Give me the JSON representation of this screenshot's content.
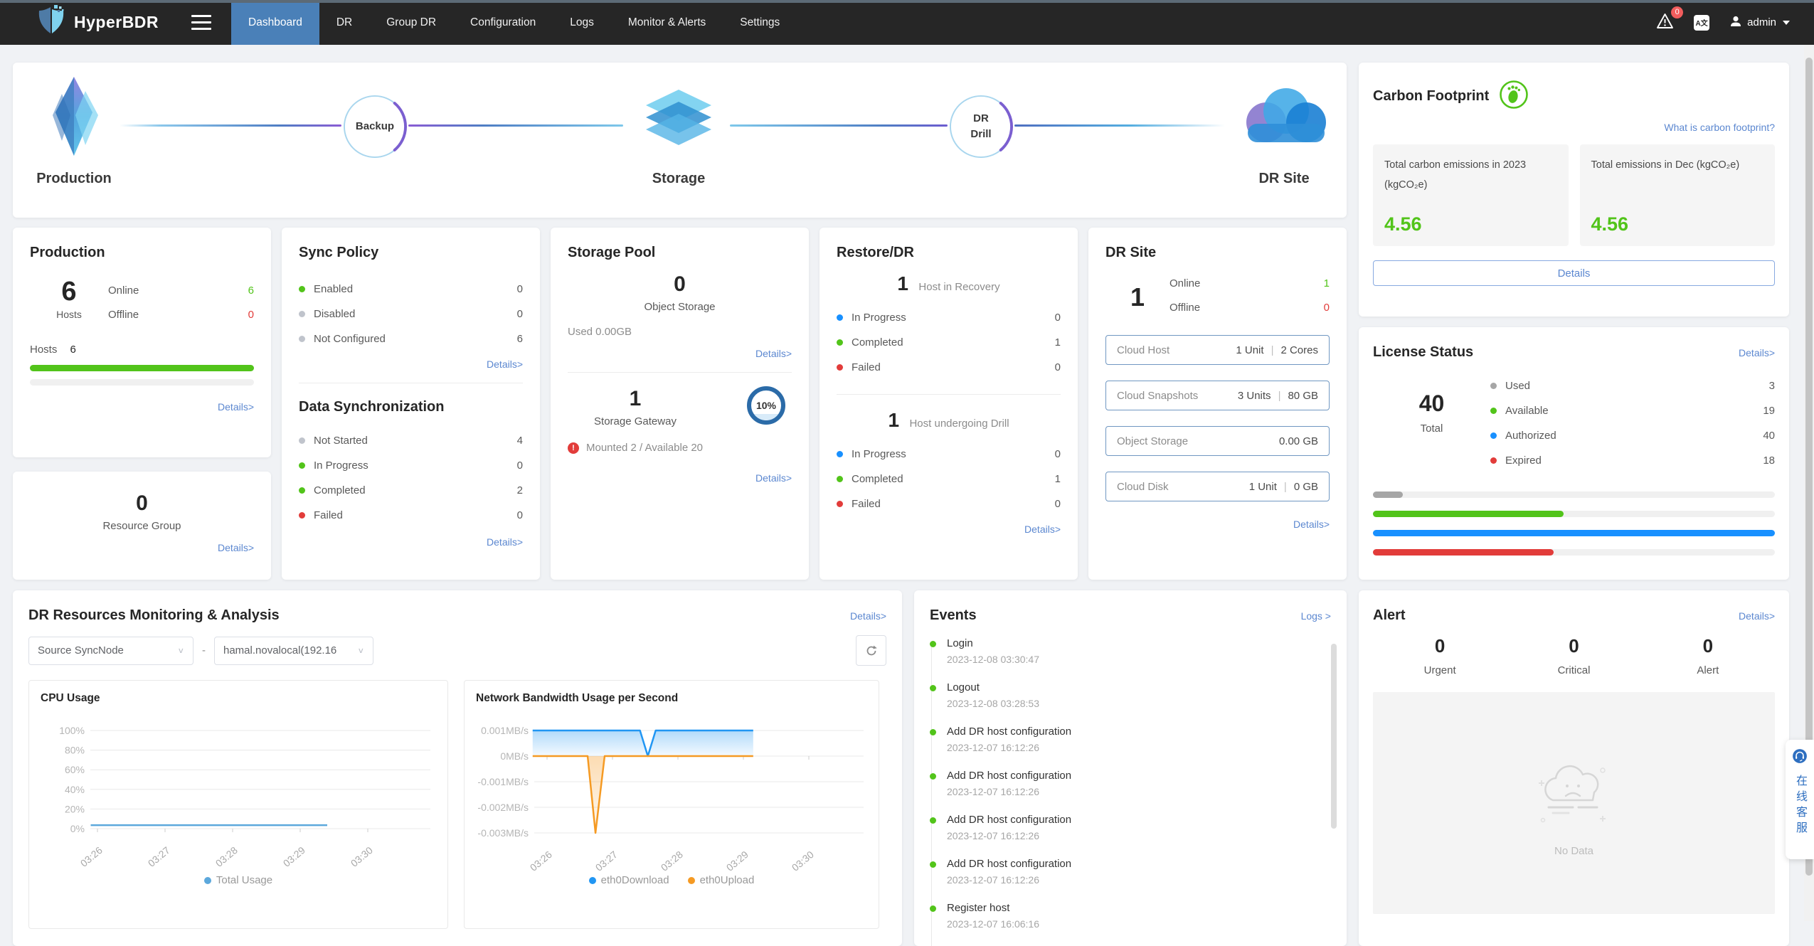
{
  "navbar": {
    "brand": "HyperBDR",
    "menu": [
      {
        "label": "Dashboard"
      },
      {
        "label": "DR"
      },
      {
        "label": "Group DR"
      },
      {
        "label": "Configuration"
      },
      {
        "label": "Logs"
      },
      {
        "label": "Monitor & Alerts"
      },
      {
        "label": "Settings"
      }
    ],
    "alarm_badge": "0",
    "lang_label": "A文",
    "user": "admin"
  },
  "flow": {
    "production_label": "Production",
    "storage_label": "Storage",
    "drsite_label": "DR Site",
    "backup_label": "Backup",
    "drill_line1": "DR",
    "drill_line2": "Drill"
  },
  "carbon": {
    "title": "Carbon Footprint",
    "link": "What is carbon footprint?",
    "cards": [
      {
        "label": "Total carbon emissions in 2023 (kgCO₂e)",
        "value": "4.56"
      },
      {
        "label": "Total emissions in Dec (kgCO₂e)",
        "value": "4.56"
      }
    ],
    "details": "Details"
  },
  "production": {
    "title": "Production",
    "value": "6",
    "value_label": "Hosts",
    "rows": [
      {
        "label": "Online",
        "value": "6",
        "vcolor": "#52c41a"
      },
      {
        "label": "Offline",
        "value": "0",
        "vcolor": "#e23c3a"
      }
    ],
    "bar_label": "Hosts",
    "bar_value": "6",
    "bar_pct": 100,
    "bar_color": "#52c41a",
    "details": "Details>"
  },
  "resource_group": {
    "value": "0",
    "label": "Resource Group",
    "details": "Details>"
  },
  "sync_policy": {
    "title": "Sync Policy",
    "rows": [
      {
        "label": "Enabled",
        "value": "0",
        "color": "#52c41a"
      },
      {
        "label": "Disabled",
        "value": "0",
        "color": "#c0c4cc"
      },
      {
        "label": "Not Configured",
        "value": "6",
        "color": "#c0c4cc"
      }
    ],
    "details": "Details>"
  },
  "data_sync": {
    "title": "Data Synchronization",
    "rows": [
      {
        "label": "Not Started",
        "value": "4",
        "color": "#c0c4cc"
      },
      {
        "label": "In Progress",
        "value": "0",
        "color": "#52c41a"
      },
      {
        "label": "Completed",
        "value": "2",
        "color": "#52c41a"
      },
      {
        "label": "Failed",
        "value": "0",
        "color": "#e23c3a"
      }
    ],
    "details": "Details>"
  },
  "storage_pool": {
    "title": "Storage Pool",
    "object_value": "0",
    "object_label": "Object Storage",
    "used": "Used 0.00GB",
    "details1": "Details>",
    "gateway_value": "1",
    "gateway_label": "Storage Gateway",
    "gauge": "10%",
    "mounted": "Mounted 2 / Available 20",
    "details2": "Details>"
  },
  "restore": {
    "title": "Restore/DR",
    "sec1": {
      "value": "1",
      "label": "Host in Recovery",
      "rows": [
        {
          "label": "In Progress",
          "value": "0",
          "color": "#1890ff"
        },
        {
          "label": "Completed",
          "value": "1",
          "color": "#52c41a"
        },
        {
          "label": "Failed",
          "value": "0",
          "color": "#e23c3a"
        }
      ]
    },
    "sec2": {
      "value": "1",
      "label": "Host undergoing Drill",
      "rows": [
        {
          "label": "In Progress",
          "value": "0",
          "color": "#1890ff"
        },
        {
          "label": "Completed",
          "value": "1",
          "color": "#52c41a"
        },
        {
          "label": "Failed",
          "value": "0",
          "color": "#e23c3a"
        }
      ]
    },
    "details": "Details>"
  },
  "dr_site": {
    "title": "DR Site",
    "value": "1",
    "rows": [
      {
        "label": "Online",
        "value": "1",
        "vcolor": "#52c41a"
      },
      {
        "label": "Offline",
        "value": "0",
        "vcolor": "#e23c3a"
      }
    ],
    "boxes": [
      {
        "label": "Cloud Host",
        "v1": "1 Unit",
        "v2": "2 Cores"
      },
      {
        "label": "Cloud Snapshots",
        "v1": "3 Units",
        "v2": "80 GB"
      },
      {
        "label": "Object Storage",
        "v1": "0.00 GB",
        "v2": ""
      },
      {
        "label": "Cloud Disk",
        "v1": "1 Unit",
        "v2": "0 GB"
      }
    ],
    "details": "Details>"
  },
  "license": {
    "title": "License Status",
    "details": "Details>",
    "total": "40",
    "total_label": "Total",
    "rows": [
      {
        "label": "Used",
        "value": "3",
        "color": "#a6a6a6",
        "pct": 7.5
      },
      {
        "label": "Available",
        "value": "19",
        "color": "#52c41a",
        "pct": 47.5
      },
      {
        "label": "Authorized",
        "value": "40",
        "color": "#1890ff",
        "pct": 100
      },
      {
        "label": "Expired",
        "value": "18",
        "color": "#e23c3a",
        "pct": 45
      }
    ]
  },
  "monitoring": {
    "title": "DR Resources Monitoring & Analysis",
    "details": "Details>",
    "select1": "Source SyncNode",
    "dash": "-",
    "select2": "hamal.novalocal(192.16"
  },
  "chart_data": [
    {
      "type": "line",
      "title": "CPU Usage",
      "x_ticks": [
        "03:26",
        "03:27",
        "03:28",
        "03:29",
        "03:30"
      ],
      "y_ticks": [
        "100%",
        "80%",
        "60%",
        "40%",
        "20%",
        "0%"
      ],
      "ylim": [
        0,
        100
      ],
      "xlim": [
        -0.1,
        4.9
      ],
      "grid": true,
      "legend_position": "bottom",
      "series": [
        {
          "name": "Total Usage",
          "color": "#5ca8dc",
          "points": [
            [
              -0.1,
              3.5
            ],
            [
              3.4,
              3.5
            ]
          ]
        }
      ]
    },
    {
      "type": "area",
      "title": "Network Bandwidth Usage per Second",
      "x_ticks": [
        "03:26",
        "03:27",
        "03:28",
        "03:29",
        "03:30"
      ],
      "y_ticks": [
        "0.001MB/s",
        "0MB/s",
        "-0.001MB/s",
        "-0.002MB/s",
        "-0.003MB/s"
      ],
      "ylim": [
        -0.003,
        0.001
      ],
      "xlim": [
        -0.22,
        4.9
      ],
      "grid": true,
      "legend_position": "bottom",
      "series": [
        {
          "name": "eth0Download",
          "color": "#2196f3",
          "fill": true,
          "baseline": 0,
          "points": [
            [
              -0.22,
              0.001
            ],
            [
              1.42,
              0.001
            ],
            [
              1.54,
              0
            ],
            [
              1.66,
              0.001
            ],
            [
              3.15,
              0.001
            ]
          ]
        },
        {
          "name": "eth0Upload",
          "color": "#f59a23",
          "fill": true,
          "baseline": 0,
          "points": [
            [
              -0.22,
              0
            ],
            [
              0.62,
              0
            ],
            [
              0.74,
              -0.003
            ],
            [
              0.88,
              0
            ],
            [
              3.15,
              0
            ]
          ]
        }
      ]
    }
  ],
  "events": {
    "title": "Events",
    "link": "Logs >",
    "items": [
      {
        "label": "Login",
        "time": "2023-12-08 03:30:47"
      },
      {
        "label": "Logout",
        "time": "2023-12-08 03:28:53"
      },
      {
        "label": "Add DR host configuration",
        "time": "2023-12-07 16:12:26"
      },
      {
        "label": "Add DR host configuration",
        "time": "2023-12-07 16:12:26"
      },
      {
        "label": "Add DR host configuration",
        "time": "2023-12-07 16:12:26"
      },
      {
        "label": "Add DR host configuration",
        "time": "2023-12-07 16:12:26"
      },
      {
        "label": "Register host",
        "time": "2023-12-07 16:06:16"
      }
    ]
  },
  "alert": {
    "title": "Alert",
    "details": "Details>",
    "stats": [
      {
        "value": "0",
        "label": "Urgent"
      },
      {
        "value": "0",
        "label": "Critical"
      },
      {
        "value": "0",
        "label": "Alert"
      }
    ],
    "empty": "No Data"
  },
  "support": {
    "label": "在线客服"
  },
  "colors": {
    "accent": "#4a80b8",
    "green": "#52c41a",
    "blue": "#1890ff",
    "red": "#e23c3a",
    "orange": "#f59a23",
    "link": "#5b87d0"
  }
}
